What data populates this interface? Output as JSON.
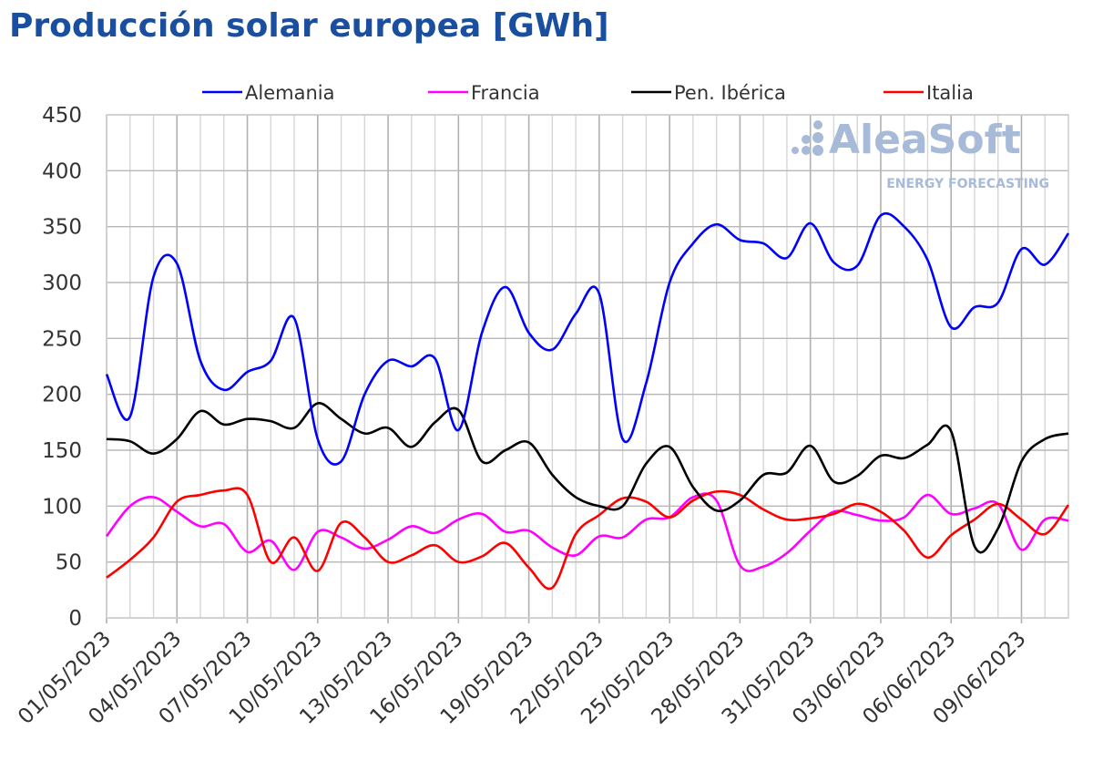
{
  "chart_data": {
    "type": "line",
    "title": "Producción solar europea [GWh]",
    "xlabel": "",
    "ylabel": "",
    "ylim": [
      0,
      450
    ],
    "yticks": [
      0,
      50,
      100,
      150,
      200,
      250,
      300,
      350,
      400,
      450
    ],
    "grid": true,
    "legend_position": "top",
    "watermark": {
      "brand": "AleaSoft",
      "tagline": "ENERGY FORECASTING"
    },
    "x": [
      "01/05/2023",
      "02/05/2023",
      "03/05/2023",
      "04/05/2023",
      "05/05/2023",
      "06/05/2023",
      "07/05/2023",
      "08/05/2023",
      "09/05/2023",
      "10/05/2023",
      "11/05/2023",
      "12/05/2023",
      "13/05/2023",
      "14/05/2023",
      "15/05/2023",
      "16/05/2023",
      "17/05/2023",
      "18/05/2023",
      "19/05/2023",
      "20/05/2023",
      "21/05/2023",
      "22/05/2023",
      "23/05/2023",
      "24/05/2023",
      "25/05/2023",
      "26/05/2023",
      "27/05/2023",
      "28/05/2023",
      "29/05/2023",
      "30/05/2023",
      "31/05/2023",
      "01/06/2023",
      "02/06/2023",
      "03/06/2023",
      "04/06/2023",
      "05/06/2023",
      "06/06/2023",
      "07/06/2023",
      "08/06/2023",
      "09/06/2023",
      "10/06/2023",
      "11/06/2023"
    ],
    "xtick_labels": [
      "01/05/2023",
      "04/05/2023",
      "07/05/2023",
      "10/05/2023",
      "13/05/2023",
      "16/05/2023",
      "19/05/2023",
      "22/05/2023",
      "25/05/2023",
      "28/05/2023",
      "31/05/2023",
      "03/06/2023",
      "06/06/2023",
      "09/06/2023"
    ],
    "series": [
      {
        "name": "Alemania",
        "color": "#0000ff",
        "values": [
          218,
          180,
          305,
          317,
          230,
          204,
          220,
          230,
          268,
          160,
          140,
          200,
          230,
          225,
          232,
          168,
          255,
          296,
          255,
          240,
          272,
          290,
          160,
          210,
          300,
          335,
          352,
          338,
          335,
          322,
          353,
          318,
          315,
          360,
          350,
          320,
          260,
          278,
          282,
          330,
          316,
          344
        ]
      },
      {
        "name": "Francia",
        "color": "#ff00ff",
        "values": [
          73,
          100,
          108,
          95,
          82,
          84,
          59,
          69,
          43,
          77,
          72,
          62,
          70,
          82,
          76,
          88,
          93,
          77,
          78,
          63,
          56,
          73,
          72,
          88,
          90,
          108,
          105,
          47,
          46,
          58,
          78,
          95,
          92,
          87,
          90,
          110,
          93,
          98,
          102,
          61,
          88,
          87
        ]
      },
      {
        "name": "Pen. Ibérica",
        "color": "#000000",
        "values": [
          160,
          158,
          147,
          160,
          185,
          173,
          178,
          176,
          170,
          192,
          178,
          165,
          170,
          153,
          175,
          186,
          140,
          150,
          157,
          128,
          108,
          100,
          100,
          138,
          153,
          117,
          96,
          105,
          128,
          130,
          154,
          122,
          127,
          145,
          143,
          155,
          167,
          64,
          80,
          140,
          160,
          165
        ]
      },
      {
        "name": "Italia",
        "color": "#ff0000",
        "values": [
          36,
          52,
          72,
          104,
          110,
          114,
          110,
          50,
          72,
          42,
          85,
          72,
          50,
          56,
          65,
          50,
          55,
          67,
          45,
          27,
          75,
          92,
          107,
          104,
          90,
          105,
          113,
          110,
          97,
          88,
          89,
          93,
          102,
          95,
          78,
          54,
          74,
          88,
          102,
          88,
          75,
          101
        ]
      }
    ]
  }
}
